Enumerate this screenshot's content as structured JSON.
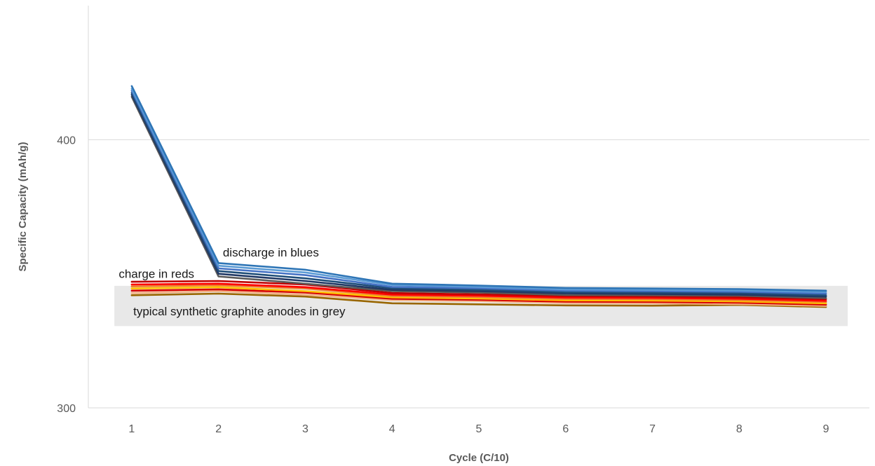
{
  "chart_data": {
    "type": "line",
    "title": "",
    "xlabel": "Cycle (C/10)",
    "ylabel": "Specific Capacity (mAh/g)",
    "x": [
      1,
      2,
      3,
      4,
      5,
      6,
      7,
      8,
      9
    ],
    "xlim": [
      0.5,
      9.5
    ],
    "ylim": [
      300,
      450
    ],
    "yticks": [
      300,
      400
    ],
    "grid": "horizontal",
    "band": {
      "label": "typical synthetic graphite anodes in grey",
      "from_x": 0.8,
      "to_x": 9.25,
      "low": 330.5,
      "high": 345.5,
      "color": "#e8e8e8"
    },
    "annotations": [
      {
        "text": "discharge in blues",
        "x": 2.05,
        "y": 356.5
      },
      {
        "text": "charge in reds",
        "x": 0.85,
        "y": 348.5
      }
    ],
    "series": [
      {
        "group": "discharge",
        "color": "#2e75b6",
        "values": [
          420.0,
          354.0,
          351.5,
          346.3,
          345.6,
          344.7,
          344.5,
          344.3,
          343.7
        ]
      },
      {
        "group": "discharge",
        "color": "#5b9bd5",
        "values": [
          419.0,
          353.0,
          350.5,
          345.8,
          345.1,
          344.2,
          344.0,
          343.8,
          343.2
        ]
      },
      {
        "group": "discharge",
        "color": "#4472c4",
        "values": [
          418.3,
          352.0,
          349.5,
          345.1,
          344.6,
          343.7,
          343.5,
          343.3,
          342.6
        ]
      },
      {
        "group": "discharge",
        "color": "#1f4e79",
        "values": [
          417.5,
          351.0,
          348.3,
          344.6,
          344.0,
          343.2,
          343.0,
          342.8,
          342.0
        ]
      },
      {
        "group": "discharge",
        "color": "#203864",
        "values": [
          416.8,
          350.0,
          347.3,
          344.0,
          343.5,
          342.7,
          342.5,
          342.2,
          341.5
        ]
      },
      {
        "group": "discharge",
        "color": "#5a5a5a",
        "values": [
          416.0,
          349.0,
          346.3,
          343.5,
          343.0,
          342.1,
          342.0,
          341.8,
          340.9
        ]
      },
      {
        "group": "charge",
        "color": "#c00000",
        "values": [
          347.0,
          347.3,
          346.0,
          342.8,
          342.3,
          341.7,
          341.5,
          341.2,
          340.5
        ]
      },
      {
        "group": "charge",
        "color": "#ff0000",
        "values": [
          346.0,
          346.3,
          345.0,
          342.2,
          341.8,
          341.1,
          341.0,
          340.7,
          339.9
        ]
      },
      {
        "group": "charge",
        "color": "#ed7d31",
        "values": [
          345.3,
          345.7,
          344.5,
          341.7,
          341.3,
          340.6,
          340.5,
          340.2,
          339.5
        ]
      },
      {
        "group": "charge",
        "color": "#ffc000",
        "values": [
          344.5,
          345.0,
          343.5,
          341.2,
          340.8,
          340.1,
          340.0,
          339.7,
          339.0
        ]
      },
      {
        "group": "charge",
        "color": "#d60000",
        "values": [
          343.7,
          344.2,
          343.0,
          340.7,
          340.3,
          339.6,
          339.5,
          339.2,
          338.5
        ]
      },
      {
        "group": "charge",
        "color": "#f4b183",
        "values": [
          342.8,
          343.5,
          342.2,
          340.2,
          339.8,
          339.1,
          339.0,
          338.7,
          338.0
        ]
      },
      {
        "group": "charge",
        "color": "#996600",
        "values": [
          342.0,
          342.6,
          341.5,
          339.0,
          338.6,
          338.2,
          338.1,
          338.4,
          337.6
        ]
      }
    ]
  }
}
